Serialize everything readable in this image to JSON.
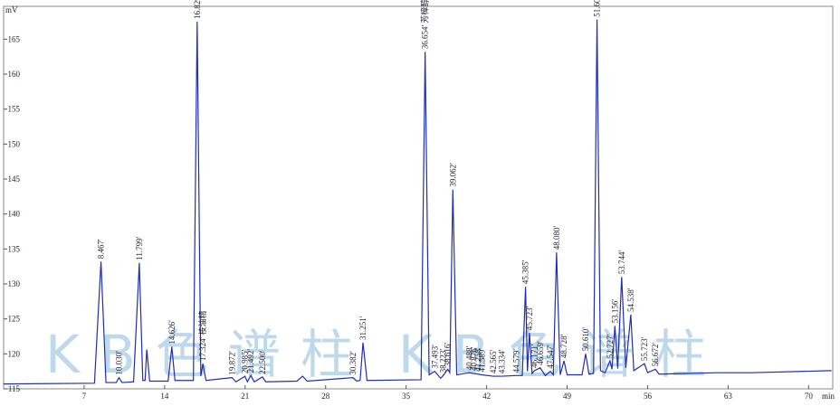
{
  "chart_data": {
    "type": "line",
    "y_label": "mV",
    "x_label": "min",
    "xlim": [
      0,
      72.1
    ],
    "ylim": [
      115,
      169.7
    ],
    "xticks": [
      7,
      14,
      21,
      28,
      35,
      42,
      49,
      56,
      63,
      70
    ],
    "yticks": [
      115,
      120,
      125,
      130,
      135,
      140,
      145,
      150,
      155,
      160,
      165
    ],
    "x": [
      0,
      7.9,
      8.467,
      8.9,
      9.8,
      10.03,
      10.3,
      11.3,
      11.799,
      12.1,
      12.3,
      12.45,
      12.7,
      14.3,
      14.626,
      14.9,
      16.5,
      16.829,
      17.15,
      17.324,
      17.6,
      19.872,
      20.2,
      20.985,
      21.2,
      21.492,
      21.8,
      22.5,
      22.8,
      25.5,
      26,
      26.4,
      30.382,
      30.7,
      31.0,
      31.251,
      31.6,
      36.3,
      36.654,
      37.0,
      37.493,
      38.0,
      38.223,
      38.616,
      38.8,
      39.062,
      39.4,
      40.488,
      40.876,
      41.258,
      41.589,
      42.565,
      43.334,
      44.579,
      45.1,
      45.385,
      45.55,
      45.723,
      45.95,
      46.171,
      46.659,
      47.1,
      47.547,
      47.8,
      48.08,
      48.4,
      48.728,
      49.0,
      50.3,
      50.61,
      50.9,
      51.3,
      51.601,
      51.9,
      52.3,
      52.727,
      52.9,
      53.156,
      53.4,
      53.744,
      54.1,
      54.538,
      54.8,
      55.723,
      56.0,
      56.672,
      57,
      62,
      65,
      72
    ],
    "series": [
      {
        "color": "#1f2fb0",
        "values": [
          115.7,
          115.8,
          133.2,
          115.9,
          115.9,
          116.6,
          115.9,
          116,
          133,
          116.2,
          116.2,
          120.6,
          116.1,
          116.1,
          121,
          116.2,
          116.2,
          167.5,
          116.8,
          118.6,
          116.2,
          116.6,
          116,
          116.8,
          116,
          116.9,
          116,
          116.7,
          116,
          116.1,
          116.8,
          116.1,
          116.6,
          116.1,
          116.2,
          121.6,
          116.2,
          116.3,
          163.2,
          117,
          117.5,
          116.5,
          116.9,
          117.8,
          117.3,
          143.5,
          117,
          117.3,
          117.2,
          117.1,
          117,
          116.8,
          116.8,
          116.9,
          116.9,
          129.6,
          117.5,
          123,
          117.2,
          117.6,
          118,
          116.9,
          117.5,
          117,
          134.5,
          117,
          119,
          117,
          117,
          120,
          117.1,
          117.2,
          167.8,
          117.6,
          117.3,
          119,
          117.8,
          124,
          117.9,
          131,
          118,
          125.6,
          117.6,
          118.6,
          117.3,
          117.8,
          117.1,
          117.3,
          117.3,
          117.6
        ]
      }
    ],
    "peaks": [
      {
        "label": "8.467'",
        "x": 8.467,
        "y": 133.2
      },
      {
        "label": "10.030'",
        "x": 10.03,
        "y": 116.6
      },
      {
        "label": "11.799'",
        "x": 11.799,
        "y": 133
      },
      {
        "label": "14.626'",
        "x": 14.626,
        "y": 121
      },
      {
        "label": "16.829'",
        "x": 16.829,
        "y": 167.5
      },
      {
        "label": "17.324' 桉油精",
        "x": 17.324,
        "y": 118.6
      },
      {
        "label": "19.872'",
        "x": 19.872,
        "y": 116.6
      },
      {
        "label": "20.985'",
        "x": 20.985,
        "y": 116.8
      },
      {
        "label": "21.492'",
        "x": 21.492,
        "y": 116.9
      },
      {
        "label": "22.500'",
        "x": 22.5,
        "y": 116.7
      },
      {
        "label": "30.382'",
        "x": 30.382,
        "y": 116.6
      },
      {
        "label": "31.251'",
        "x": 31.251,
        "y": 121.6
      },
      {
        "label": "36.654' 芳樟醇",
        "x": 36.654,
        "y": 163.2
      },
      {
        "label": "37.493'",
        "x": 37.493,
        "y": 117.5
      },
      {
        "label": "38.223'",
        "x": 38.223,
        "y": 116.9
      },
      {
        "label": "38.616'",
        "x": 38.616,
        "y": 117.8
      },
      {
        "label": "39.062'",
        "x": 39.062,
        "y": 143.5
      },
      {
        "label": "40.488'",
        "x": 40.488,
        "y": 117.3
      },
      {
        "label": "40.876'",
        "x": 40.876,
        "y": 117.2
      },
      {
        "label": "41.258'",
        "x": 41.258,
        "y": 117.1
      },
      {
        "label": "41.589'",
        "x": 41.589,
        "y": 117
      },
      {
        "label": "42.565'",
        "x": 42.565,
        "y": 116.8
      },
      {
        "label": "43.334'",
        "x": 43.334,
        "y": 116.8
      },
      {
        "label": "44.579'",
        "x": 44.579,
        "y": 116.9
      },
      {
        "label": "45.385'",
        "x": 45.385,
        "y": 129.6
      },
      {
        "label": "45.723'",
        "x": 45.723,
        "y": 123
      },
      {
        "label": "46.171'",
        "x": 46.171,
        "y": 117.6
      },
      {
        "label": "46.659'",
        "x": 46.659,
        "y": 118
      },
      {
        "label": "47.547'",
        "x": 47.547,
        "y": 117.5
      },
      {
        "label": "48.080'",
        "x": 48.08,
        "y": 134.5
      },
      {
        "label": "48.728'",
        "x": 48.728,
        "y": 119
      },
      {
        "label": "50.610'",
        "x": 50.61,
        "y": 120
      },
      {
        "label": "51.601' 乙酸芳樟酯",
        "x": 51.601,
        "y": 167.8
      },
      {
        "label": "52.727'",
        "x": 52.727,
        "y": 119
      },
      {
        "label": "53.156'",
        "x": 53.156,
        "y": 124
      },
      {
        "label": "53.744'",
        "x": 53.744,
        "y": 131
      },
      {
        "label": "54.538'",
        "x": 54.538,
        "y": 125.6
      },
      {
        "label": "55.723'",
        "x": 55.723,
        "y": 118.6
      },
      {
        "label": "56.672'",
        "x": 56.672,
        "y": 117.8
      }
    ],
    "watermarks": [
      "KB色谱柱",
      "KB色谱柱"
    ]
  }
}
